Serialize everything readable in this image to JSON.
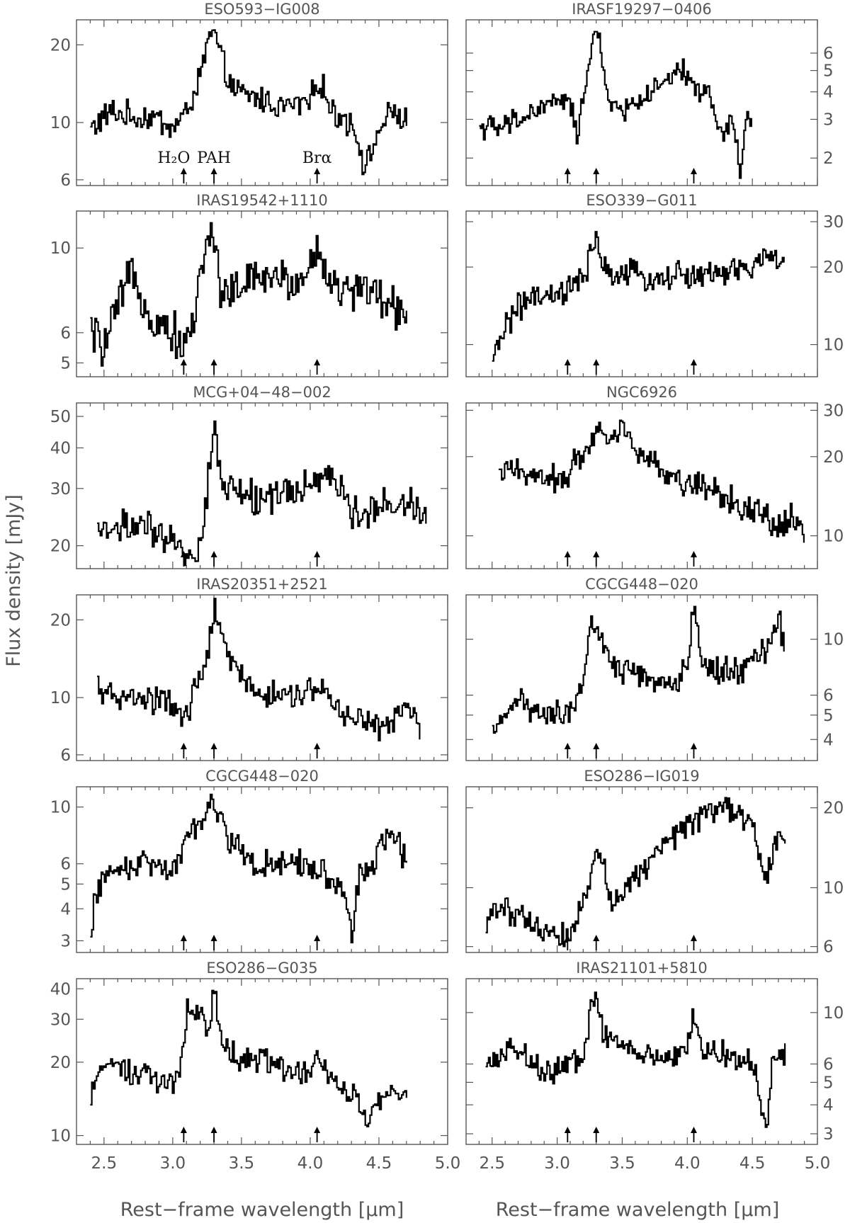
{
  "figure": {
    "ylabel": "Flux density [mJy]",
    "xlabel": "Rest−frame wavelength [μm]",
    "xticks": [
      "2.5",
      "3.0",
      "3.5",
      "4.0",
      "4.5",
      "5.0"
    ],
    "markers": [
      {
        "wavelength": 3.08,
        "label": "H₂O"
      },
      {
        "wavelength": 3.3,
        "label": "PAH"
      },
      {
        "wavelength": 4.05,
        "label": "Brα"
      }
    ]
  },
  "chart_data": [
    {
      "type": "line",
      "title": "ESO593−IG008",
      "xlim": [
        2.3,
        5.0
      ],
      "ylim": [
        5.7,
        25
      ],
      "yscale": "log",
      "yticks": [
        6,
        10,
        20
      ],
      "yaxis": "left",
      "show_marker_labels": true,
      "series": [
        {
          "name": "",
          "x": [
            2.4,
            2.55,
            2.7,
            2.85,
            3.0,
            3.1,
            3.2,
            3.25,
            3.3,
            3.35,
            3.45,
            3.6,
            3.8,
            4.0,
            4.05,
            4.15,
            4.3,
            4.4,
            4.5,
            4.6,
            4.7
          ],
          "y": [
            9.5,
            11.0,
            10.5,
            10.5,
            9.5,
            11.0,
            15.0,
            21.0,
            22.0,
            17.0,
            13.0,
            12.5,
            11.5,
            12.0,
            15.0,
            11.0,
            10.0,
            6.5,
            9.5,
            11.0,
            10.0
          ]
        }
      ]
    },
    {
      "type": "line",
      "title": "IRASF19297−0406",
      "xlim": [
        2.3,
        5.0
      ],
      "ylim": [
        1.5,
        8.5
      ],
      "yscale": "log",
      "yticks": [
        2,
        3,
        4,
        5,
        6
      ],
      "yaxis": "right",
      "show_marker_labels": false,
      "series": [
        {
          "name": "",
          "x": [
            2.4,
            2.55,
            2.7,
            2.85,
            3.0,
            3.1,
            3.15,
            3.25,
            3.3,
            3.35,
            3.45,
            3.6,
            3.8,
            3.95,
            4.0,
            4.05,
            4.15,
            4.25,
            4.35,
            4.4,
            4.45,
            4.5
          ],
          "y": [
            2.8,
            2.7,
            3.0,
            3.3,
            3.7,
            3.5,
            2.2,
            6.0,
            7.9,
            4.5,
            3.2,
            3.6,
            4.2,
            5.0,
            4.6,
            4.2,
            4.0,
            2.5,
            3.0,
            1.6,
            3.0,
            2.9
          ]
        }
      ]
    },
    {
      "type": "line",
      "title": "IRAS19542+1110",
      "xlim": [
        2.3,
        5.0
      ],
      "ylim": [
        4.6,
        12.5
      ],
      "yscale": "log",
      "yticks": [
        5,
        6,
        10
      ],
      "yaxis": "left",
      "show_marker_labels": false,
      "series": [
        {
          "name": "",
          "x": [
            2.4,
            2.5,
            2.6,
            2.7,
            2.85,
            3.0,
            3.1,
            3.15,
            3.2,
            3.25,
            3.3,
            3.35,
            3.5,
            3.7,
            3.9,
            4.05,
            4.2,
            4.4,
            4.55,
            4.7
          ],
          "y": [
            6.0,
            5.5,
            7.0,
            8.5,
            6.5,
            6.0,
            5.5,
            6.5,
            9.0,
            10.0,
            11.0,
            7.5,
            8.0,
            8.5,
            8.0,
            9.8,
            7.5,
            8.0,
            7.0,
            7.0
          ]
        }
      ]
    },
    {
      "type": "line",
      "title": "ESO339−G011",
      "xlim": [
        2.3,
        5.0
      ],
      "ylim": [
        7.5,
        33
      ],
      "yscale": "log",
      "yticks": [
        10,
        20,
        30
      ],
      "yaxis": "right",
      "show_marker_labels": false,
      "series": [
        {
          "name": "",
          "x": [
            2.5,
            2.55,
            2.6,
            2.7,
            2.8,
            2.9,
            3.0,
            3.1,
            3.2,
            3.3,
            3.4,
            3.5,
            3.7,
            3.9,
            4.1,
            4.3,
            4.5,
            4.6,
            4.7,
            4.75
          ],
          "y": [
            8.0,
            10.5,
            12.0,
            14.0,
            15.0,
            15.0,
            15.5,
            16.5,
            18.0,
            25.0,
            18.0,
            19.0,
            18.0,
            18.5,
            18.5,
            19.0,
            20.0,
            22.0,
            22.0,
            19.0
          ]
        }
      ]
    },
    {
      "type": "line",
      "title": "MCG+04−48−002",
      "xlim": [
        2.3,
        5.0
      ],
      "ylim": [
        17,
        55
      ],
      "yscale": "log",
      "yticks": [
        20,
        30,
        40,
        50
      ],
      "yaxis": "left",
      "show_marker_labels": false,
      "series": [
        {
          "name": "",
          "x": [
            2.45,
            2.6,
            2.75,
            2.9,
            3.0,
            3.1,
            3.2,
            3.25,
            3.3,
            3.35,
            3.45,
            3.6,
            3.8,
            4.0,
            4.05,
            4.2,
            4.35,
            4.5,
            4.6,
            4.7,
            4.85
          ],
          "y": [
            22,
            23,
            23,
            21,
            20,
            19,
            20,
            30,
            47,
            30,
            30,
            28,
            29,
            30,
            34,
            30,
            24,
            28,
            26,
            28,
            25
          ]
        }
      ]
    },
    {
      "type": "line",
      "title": "NGC6926",
      "xlim": [
        2.3,
        5.0
      ],
      "ylim": [
        7.5,
        32
      ],
      "yscale": "log",
      "yticks": [
        10,
        20,
        30
      ],
      "yaxis": "right",
      "show_marker_labels": false,
      "series": [
        {
          "name": "",
          "x": [
            2.55,
            2.7,
            2.85,
            3.0,
            3.1,
            3.2,
            3.3,
            3.4,
            3.5,
            3.6,
            3.8,
            4.0,
            4.2,
            4.4,
            4.55,
            4.7,
            4.8,
            4.9
          ],
          "y": [
            17,
            18,
            17,
            16,
            18,
            21,
            25,
            24,
            26,
            22,
            17,
            16,
            15,
            13,
            12,
            11,
            12,
            10
          ]
        }
      ]
    },
    {
      "type": "line",
      "title": "IRAS20351+2521",
      "xlim": [
        2.3,
        5.0
      ],
      "ylim": [
        5.7,
        25
      ],
      "yscale": "log",
      "yticks": [
        6,
        10,
        20
      ],
      "yaxis": "left",
      "show_marker_labels": false,
      "series": [
        {
          "name": "",
          "x": [
            2.45,
            2.6,
            2.75,
            2.9,
            3.0,
            3.1,
            3.15,
            3.25,
            3.3,
            3.35,
            3.45,
            3.6,
            3.8,
            4.0,
            4.05,
            4.2,
            4.4,
            4.55,
            4.7,
            4.8
          ],
          "y": [
            10.5,
            10.0,
            10.0,
            9.5,
            9.5,
            8.0,
            11.0,
            14.0,
            22.0,
            16.0,
            13.0,
            10.5,
            10.0,
            10.5,
            11.0,
            9.0,
            8.0,
            7.5,
            9.5,
            7.0
          ]
        }
      ]
    },
    {
      "type": "line",
      "title": "CGCG448−020",
      "xlim": [
        2.3,
        5.0
      ],
      "ylim": [
        3.3,
        15
      ],
      "yscale": "log",
      "yticks": [
        4,
        5,
        6,
        10
      ],
      "yaxis": "right",
      "show_marker_labels": false,
      "series": [
        {
          "name": "",
          "x": [
            2.5,
            2.6,
            2.7,
            2.85,
            3.0,
            3.1,
            3.2,
            3.25,
            3.3,
            3.4,
            3.5,
            3.7,
            3.9,
            4.0,
            4.05,
            4.1,
            4.2,
            4.4,
            4.6,
            4.7,
            4.75
          ],
          "y": [
            4.0,
            5.0,
            6.0,
            5.0,
            5.0,
            5.0,
            6.5,
            12.0,
            11.0,
            8.0,
            7.5,
            7.0,
            6.5,
            8.0,
            14.0,
            8.5,
            7.5,
            7.5,
            9.0,
            12.0,
            9.0
          ]
        }
      ]
    },
    {
      "type": "line",
      "title": "CGCG448−020",
      "xlim": [
        2.3,
        5.0
      ],
      "ylim": [
        2.7,
        12
      ],
      "yscale": "log",
      "yticks": [
        3,
        4,
        5,
        6,
        10
      ],
      "yaxis": "left",
      "show_marker_labels": false,
      "series": [
        {
          "name": "",
          "x": [
            2.4,
            2.45,
            2.55,
            2.7,
            2.9,
            3.0,
            3.1,
            3.2,
            3.3,
            3.4,
            3.6,
            3.8,
            4.0,
            4.1,
            4.25,
            4.3,
            4.35,
            4.45,
            4.55,
            4.65,
            4.7
          ],
          "y": [
            3.4,
            5.0,
            5.5,
            6.0,
            6.0,
            5.5,
            8.0,
            9.0,
            10.5,
            7.5,
            6.0,
            6.0,
            6.0,
            5.5,
            4.5,
            2.8,
            5.5,
            6.0,
            8.0,
            7.0,
            6.0
          ]
        }
      ]
    },
    {
      "type": "line",
      "title": "ESO286−IG019",
      "xlim": [
        2.3,
        5.0
      ],
      "ylim": [
        5.7,
        24
      ],
      "yscale": "log",
      "yticks": [
        6,
        10,
        20
      ],
      "yaxis": "right",
      "show_marker_labels": false,
      "series": [
        {
          "name": "",
          "x": [
            2.45,
            2.55,
            2.7,
            2.85,
            3.0,
            3.1,
            3.2,
            3.3,
            3.4,
            3.5,
            3.7,
            3.9,
            4.1,
            4.3,
            4.4,
            4.5,
            4.6,
            4.7,
            4.75
          ],
          "y": [
            7.5,
            8.5,
            8.0,
            7.0,
            6.5,
            7.0,
            9.0,
            14.0,
            9.0,
            10.0,
            12.5,
            16.0,
            19.0,
            21.0,
            19.0,
            17.0,
            10.0,
            17.0,
            16.0
          ]
        }
      ]
    },
    {
      "type": "line",
      "title": "ESO286−G035",
      "xlim": [
        2.3,
        5.0
      ],
      "ylim": [
        9.2,
        44
      ],
      "yscale": "log",
      "yticks": [
        10,
        20,
        30,
        40
      ],
      "yaxis": "left",
      "show_marker_labels": false,
      "series": [
        {
          "name": "",
          "x": [
            2.4,
            2.5,
            2.6,
            2.75,
            2.9,
            3.0,
            3.05,
            3.1,
            3.2,
            3.25,
            3.3,
            3.35,
            3.5,
            3.7,
            3.9,
            4.05,
            4.2,
            4.35,
            4.4,
            4.55,
            4.7
          ],
          "y": [
            15.0,
            20.0,
            19.0,
            18.0,
            17.0,
            17.0,
            19.0,
            32.0,
            33.0,
            26.0,
            40.0,
            22.0,
            21.0,
            20.0,
            18.0,
            20.0,
            16.0,
            14.0,
            10.5,
            16.0,
            14.0
          ]
        }
      ]
    },
    {
      "type": "line",
      "title": "IRAS21101+5810",
      "xlim": [
        2.3,
        5.0
      ],
      "ylim": [
        2.7,
        14
      ],
      "yscale": "log",
      "yticks": [
        3,
        4,
        5,
        6,
        10
      ],
      "yaxis": "right",
      "show_marker_labels": false,
      "series": [
        {
          "name": "",
          "x": [
            2.45,
            2.55,
            2.65,
            2.8,
            2.95,
            3.1,
            3.2,
            3.25,
            3.3,
            3.35,
            3.5,
            3.7,
            3.9,
            4.0,
            4.05,
            4.1,
            4.3,
            4.5,
            4.6,
            4.65,
            4.75
          ],
          "y": [
            6.0,
            6.5,
            7.0,
            6.0,
            5.5,
            6.0,
            6.5,
            10.0,
            12.0,
            8.0,
            7.0,
            6.5,
            6.5,
            7.0,
            10.0,
            7.0,
            6.5,
            6.0,
            3.0,
            6.0,
            6.5
          ]
        }
      ]
    }
  ]
}
